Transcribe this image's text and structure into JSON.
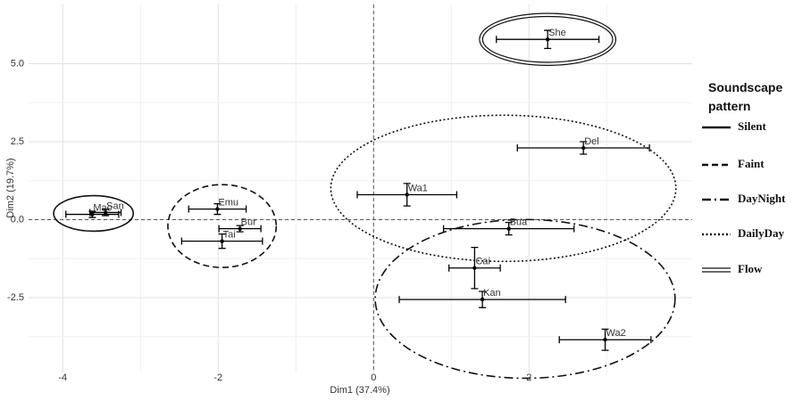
{
  "chart_data": {
    "type": "scatter",
    "x_label": "Dim1 (37.4%)",
    "y_label": "Dim2 (19.7%)",
    "labels": [
      "She",
      "Del",
      "Wa1",
      "Bua",
      "Cai",
      "Kan",
      "Wa2",
      "Emu",
      "Bur",
      "Tai",
      "Mac",
      "San"
    ],
    "x": [
      2.24,
      2.7,
      0.43,
      1.74,
      1.3,
      1.4,
      2.98,
      -2.01,
      -1.72,
      -1.95,
      -3.62,
      -3.45
    ],
    "y": [
      5.78,
      2.3,
      0.8,
      -0.29,
      -1.55,
      -2.56,
      -3.85,
      0.34,
      -0.29,
      -0.69,
      0.17,
      0.23
    ],
    "xerr": [
      0.66,
      0.85,
      0.64,
      0.84,
      0.33,
      1.07,
      0.59,
      0.37,
      0.27,
      0.52,
      0.34,
      0.2
    ],
    "yerr": [
      0.29,
      0.2,
      0.36,
      0.2,
      0.66,
      0.26,
      0.34,
      0.17,
      0.1,
      0.23,
      0.1,
      0.1
    ],
    "color": "#000000",
    "xlim": [
      -4.44,
      4.1
    ],
    "ylim": [
      -4.9,
      6.9
    ],
    "xticks": [
      -4,
      -2,
      0,
      2
    ],
    "yticks": [
      -2.5,
      {
        "value": 0,
        "label": "0.0"
      },
      2.5,
      {
        "value": 5,
        "label": "5.0"
      }
    ],
    "grid": true,
    "legend_title": "Soundscape pattern",
    "groups": [
      {
        "name": "Silent",
        "style": "solid",
        "members": [
          10,
          11
        ]
      },
      {
        "name": "Faint",
        "style": "dashed",
        "members": [
          7,
          8,
          9
        ]
      },
      {
        "name": "DayNight",
        "style": "dashdot",
        "members": [
          4,
          5,
          6
        ]
      },
      {
        "name": "DailyDay",
        "style": "dotted",
        "members": [
          1,
          2,
          3
        ]
      },
      {
        "name": "Flow",
        "style": "double",
        "members": [
          0
        ]
      }
    ]
  }
}
